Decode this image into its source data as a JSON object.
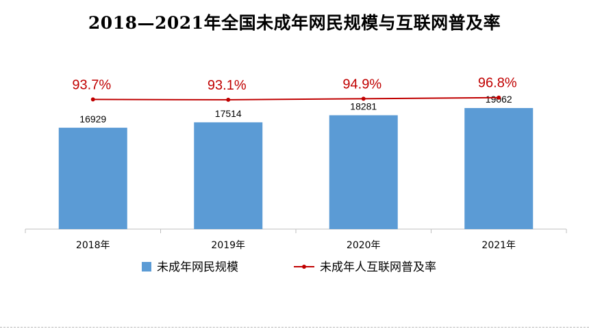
{
  "chart_data": {
    "type": "bar",
    "title": "2018—2021年全国未成年网民规模与互联网普及率",
    "categories": [
      "2018年",
      "2019年",
      "2020年",
      "2021年"
    ],
    "series": [
      {
        "name": "未成年网民规模",
        "kind": "bar",
        "values": [
          16929,
          17514,
          18281,
          19062
        ],
        "labels": [
          "16929",
          "17514",
          "18281",
          "19062"
        ],
        "color": "#5b9bd5"
      },
      {
        "name": "未成年人互联网普及率",
        "kind": "line",
        "values": [
          93.7,
          93.1,
          94.9,
          96.8
        ],
        "labels": [
          "93.7%",
          "93.1%",
          "94.9%",
          "96.8%"
        ],
        "color": "#c00000"
      }
    ],
    "legend_position": "bottom",
    "grid": false
  }
}
